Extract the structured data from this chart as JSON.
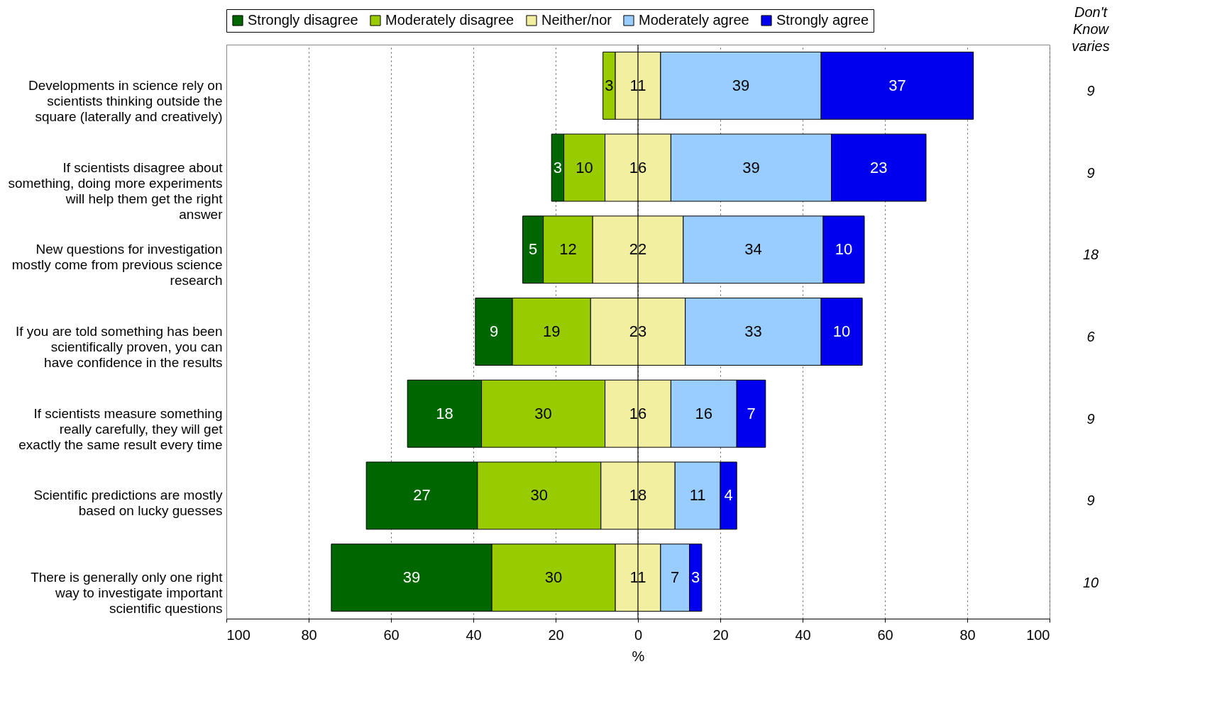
{
  "chart_data": {
    "type": "bar",
    "orientation": "horizontal",
    "xlabel": "%",
    "legend": "top",
    "grid": "x",
    "data_labels": true,
    "categories": [
      "Developments in science rely on scientists thinking outside the square (laterally and creatively)",
      "If scientists disagree about something, doing more experiments will help them get the right answer",
      "New questions for investigation mostly come from previous science research",
      "If you are told something has been scientifically proven, you can have confidence in the results",
      "If scientists measure something really carefully, they will get exactly the same result every time",
      "Scientific predictions are mostly based on lucky guesses",
      "There is generally only one right way to investigate important scientific questions"
    ],
    "series": [
      {
        "name": "Strongly disagree",
        "color": "#006600",
        "values": [
          null,
          3,
          5,
          9,
          18,
          27,
          39
        ],
        "base": [
          null,
          -21,
          -28,
          -39.5,
          -56,
          -66,
          -74.5
        ]
      },
      {
        "name": "Moderately disagree",
        "color": "#99cc00",
        "values": [
          3,
          10,
          12,
          19,
          30,
          30,
          30
        ],
        "base": [
          -8.5,
          -18,
          -23,
          -30.5,
          -38,
          -39,
          -35.5
        ]
      },
      {
        "name": "Neither/nor",
        "color": "#f2f0a0",
        "values": [
          11,
          16,
          22,
          23,
          16,
          18,
          11
        ],
        "base": [
          -5.5,
          -8,
          -11,
          -11.5,
          -8,
          -9,
          -5.5
        ]
      },
      {
        "name": "Moderately agree",
        "color": "#99ccff",
        "values": [
          39,
          39,
          34,
          33,
          16,
          11,
          7
        ],
        "base": [
          5.5,
          8,
          11,
          11.5,
          8,
          9,
          5.5
        ]
      },
      {
        "name": "Strongly agree",
        "color": "#0000ee",
        "values": [
          37,
          23,
          10,
          10,
          7,
          4,
          3
        ],
        "base": [
          44.5,
          47,
          45,
          44.5,
          24,
          20,
          12.5
        ]
      }
    ],
    "xlim": [
      -100,
      100
    ],
    "xticks": [
      {
        "value": -100,
        "label": "100"
      },
      {
        "value": -80,
        "label": "80"
      },
      {
        "value": -60,
        "label": "60"
      },
      {
        "value": -40,
        "label": "40"
      },
      {
        "value": -20,
        "label": "20"
      },
      0,
      20,
      40,
      60,
      80,
      100
    ],
    "ref_lines": [
      {
        "axis": "x",
        "value": 0,
        "label": null
      }
    ],
    "annotations": [
      "Don't Know varies",
      "9",
      "9",
      "18",
      "6",
      "9",
      "9",
      "10"
    ]
  }
}
